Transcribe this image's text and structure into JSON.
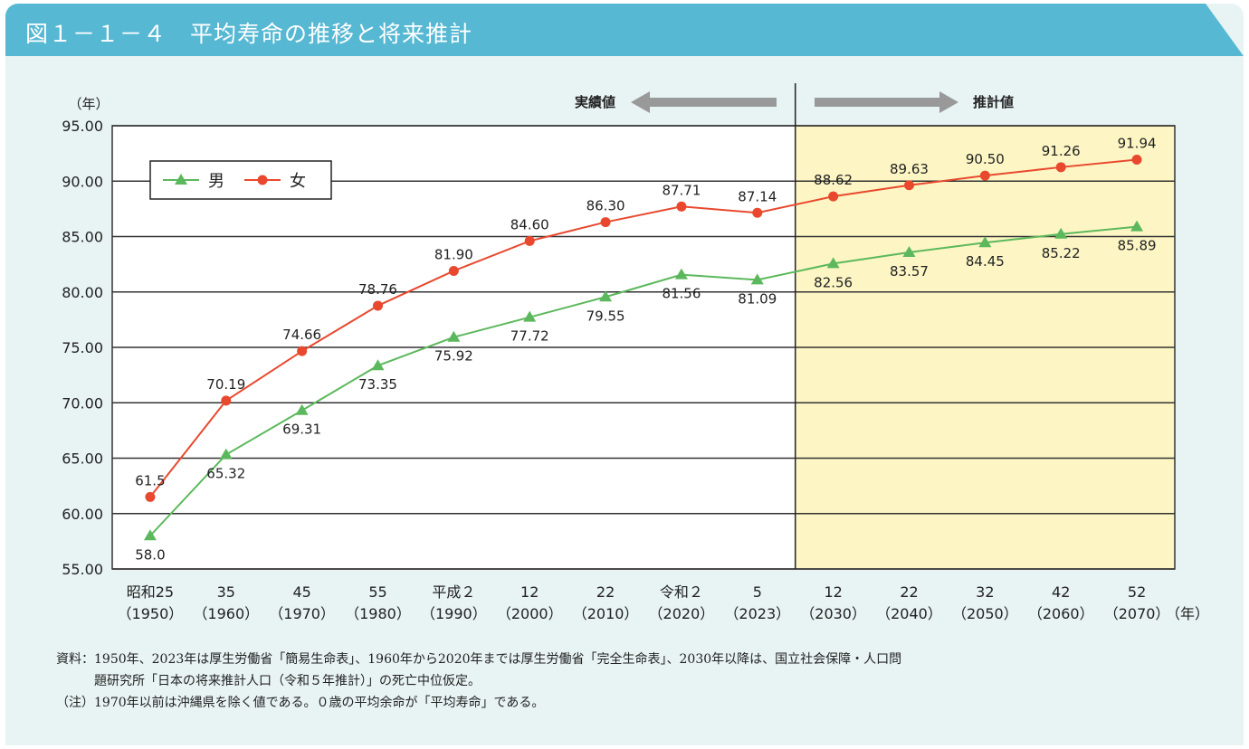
{
  "title": "図１－１－４　平均寿命の推移と将来推計",
  "chart_data": {
    "type": "line",
    "ylabel": "（年）",
    "xunit": "（年）",
    "ylim": [
      55,
      95
    ],
    "yticks": [
      "55.00",
      "60.00",
      "65.00",
      "70.00",
      "75.00",
      "80.00",
      "85.00",
      "90.00",
      "95.00"
    ],
    "categories": [
      [
        "昭和25",
        "（1950）"
      ],
      [
        "35",
        "（1960）"
      ],
      [
        "45",
        "（1970）"
      ],
      [
        "55",
        "（1980）"
      ],
      [
        "平成２",
        "（1990）"
      ],
      [
        "12",
        "（2000）"
      ],
      [
        "22",
        "（2010）"
      ],
      [
        "令和２",
        "（2020）"
      ],
      [
        "5",
        "（2023）"
      ],
      [
        "12",
        "（2030）"
      ],
      [
        "22",
        "（2040）"
      ],
      [
        "32",
        "（2050）"
      ],
      [
        "42",
        "（2060）"
      ],
      [
        "52",
        "（2070）"
      ]
    ],
    "series": [
      {
        "name": "男",
        "color": "#5cb85c",
        "marker": "triangle",
        "values": [
          58.0,
          65.32,
          69.31,
          73.35,
          75.92,
          77.72,
          79.55,
          81.56,
          81.09,
          82.56,
          83.57,
          84.45,
          85.22,
          85.89
        ],
        "labels": [
          "58.0",
          "65.32",
          "69.31",
          "73.35",
          "75.92",
          "77.72",
          "79.55",
          "81.56",
          "81.09",
          "82.56",
          "83.57",
          "84.45",
          "85.22",
          "85.89"
        ]
      },
      {
        "name": "女",
        "color": "#e8492e",
        "marker": "circle",
        "values": [
          61.5,
          70.19,
          74.66,
          78.76,
          81.9,
          84.6,
          86.3,
          87.71,
          87.14,
          88.62,
          89.63,
          90.5,
          91.26,
          91.94
        ],
        "labels": [
          "61.5",
          "70.19",
          "74.66",
          "78.76",
          "81.90",
          "84.60",
          "86.30",
          "87.71",
          "87.14",
          "88.62",
          "89.63",
          "90.50",
          "91.26",
          "91.94"
        ]
      }
    ],
    "annotations": {
      "actual": "実績値",
      "projected": "推計値",
      "projection_start_index": 9,
      "projection_bg": "#fdf6c4"
    },
    "legend_position": "top-left",
    "grid": "horizontal"
  },
  "notes": [
    "資料：1950年、2023年は厚生労働省「簡易生命表」、1960年から2020年までは厚生労働省「完全生命表」、2030年以降は、国立社会保障・人口問",
    "　　　題研究所「日本の将来推計人口（令和５年推計）」の死亡中位仮定。",
    "（注）1970年以前は沖縄県を除く値である。０歳の平均余命が「平均寿命」である。"
  ]
}
